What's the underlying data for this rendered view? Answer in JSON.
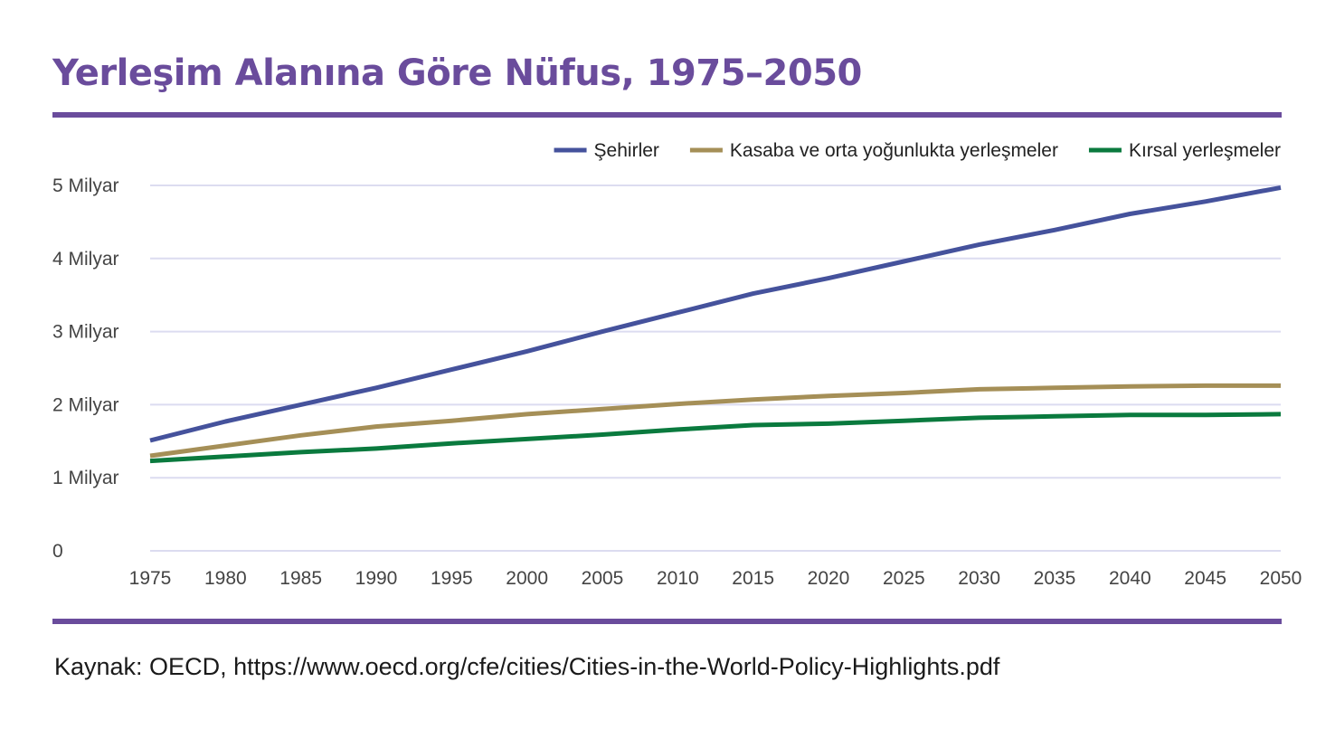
{
  "title": "Yerleşim Alanına Göre Nüfus, 1975–2050",
  "source": "Kaynak: OECD, https://www.oecd.org/cfe/cities/Cities-in-the-World-Policy-Highlights.pdf",
  "colors": {
    "accent": "#6a4c9c",
    "grid": "#dcdcf0"
  },
  "chart_data": {
    "type": "line",
    "title": "Yerleşim Alanına Göre Nüfus, 1975–2050",
    "xlabel": "",
    "ylabel": "",
    "legend_position": "top-right",
    "x": [
      1975,
      1980,
      1985,
      1990,
      1995,
      2000,
      2005,
      2010,
      2015,
      2020,
      2025,
      2030,
      2035,
      2040,
      2045,
      2050
    ],
    "x_tick_labels": [
      "1975",
      "1980",
      "1985",
      "1990",
      "1995",
      "2000",
      "2005",
      "2010",
      "2015",
      "2020",
      "2025",
      "2030",
      "2035",
      "2040",
      "2045",
      "2050"
    ],
    "ylim": [
      0,
      5
    ],
    "y_ticks": [
      0,
      1,
      2,
      3,
      4,
      5
    ],
    "y_tick_labels": [
      "0",
      "1 Milyar",
      "2 Milyar",
      "3 Milyar",
      "4 Milyar",
      "5 Milyar"
    ],
    "grid": true,
    "series": [
      {
        "name": "Şehirler",
        "color": "#45529c",
        "values": [
          1.51,
          1.77,
          2.0,
          2.23,
          2.48,
          2.73,
          3.0,
          3.26,
          3.52,
          3.73,
          3.96,
          4.19,
          4.39,
          4.61,
          4.78,
          4.97
        ]
      },
      {
        "name": "Kasaba ve orta yoğunlukta yerleşmeler",
        "color": "#a58f57",
        "values": [
          1.3,
          1.44,
          1.58,
          1.7,
          1.78,
          1.87,
          1.94,
          2.01,
          2.07,
          2.12,
          2.16,
          2.21,
          2.23,
          2.25,
          2.26,
          2.26
        ]
      },
      {
        "name": "Kırsal yerleşmeler",
        "color": "#0a7a3e",
        "values": [
          1.23,
          1.29,
          1.35,
          1.4,
          1.47,
          1.53,
          1.59,
          1.66,
          1.72,
          1.74,
          1.78,
          1.82,
          1.84,
          1.86,
          1.86,
          1.87
        ]
      }
    ]
  }
}
